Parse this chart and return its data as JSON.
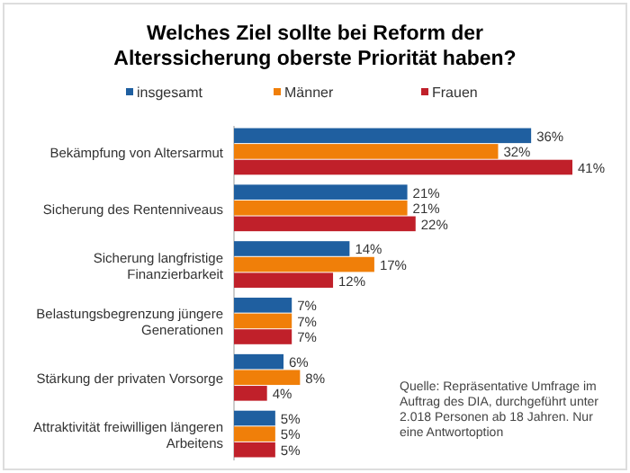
{
  "chart_data": {
    "type": "bar",
    "orientation": "horizontal",
    "title": "Welches Ziel sollte bei Reform der Alterssicherung oberste Priorität haben?",
    "categories": [
      "Bekämpfung von Altersarmut",
      "Sicherung des Rentenniveaus",
      "Sicherung langfristige Finanzierbarkeit",
      "Belastungsbegrenzung jüngere Generationen",
      "Stärkung der privaten Vorsorge",
      "Attraktivität freiwilligen längeren Arbeitens"
    ],
    "series": [
      {
        "name": "insgesamt",
        "color": "#1f5fa0",
        "values": [
          36,
          21,
          14,
          7,
          6,
          5
        ],
        "value_labels": [
          "36%",
          "21%",
          "14%",
          "7%",
          "6%",
          "5%"
        ]
      },
      {
        "name": "Männer",
        "color": "#f07f09",
        "values": [
          32,
          21,
          17,
          7,
          8,
          5
        ],
        "value_labels": [
          "32%",
          "21%",
          "17%",
          "7%",
          "8%",
          "5%"
        ]
      },
      {
        "name": "Frauen",
        "color": "#c0202a",
        "values": [
          41,
          22,
          12,
          7,
          4,
          5
        ],
        "value_labels": [
          "41%",
          "22%",
          "12%",
          "7%",
          "4%",
          "5%"
        ]
      }
    ],
    "legend": "top",
    "annotations": [
      "Quelle: Repräsentative Umfrage im Auftrag des DIA, durchgeführt unter 2.018 Personen ab 18 Jahren. Nur eine Antwortoption"
    ]
  }
}
